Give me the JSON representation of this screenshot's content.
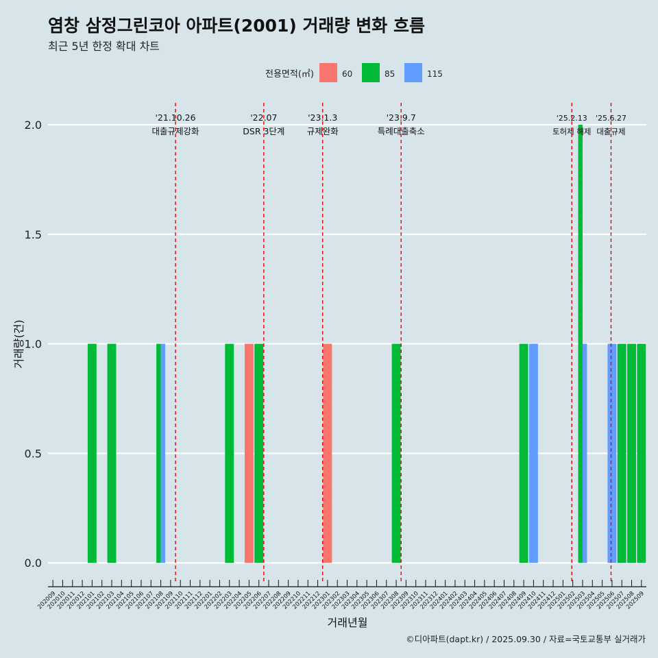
{
  "header": {
    "title": "염창 삼정그린코아 아파트(2001) 거래량 변화 흐름",
    "subtitle": "최근 5년 한정 확대 차트"
  },
  "caption": "©디아파트(dapt.kr) / 2025.09.30 / 자료=국토교통부 실거래가",
  "chart_data": {
    "type": "bar",
    "title": "염창 삼정그린코아 아파트(2001) 거래량 변화 흐름",
    "xlabel": "거래년월",
    "ylabel": "거래량(건)",
    "ylim": [
      -0.09,
      2.1
    ],
    "yticks": [
      0.0,
      0.5,
      1.0,
      1.5,
      2.0
    ],
    "ytick_labels": [
      "0.0",
      "0.5",
      "1.0",
      "1.5",
      "2.0"
    ],
    "legend": {
      "title": "전용면적(㎡)",
      "position": "top",
      "entries": [
        {
          "name": "60",
          "color": "#f8766d"
        },
        {
          "name": "85",
          "color": "#00ba38"
        },
        {
          "name": "115",
          "color": "#619cff"
        }
      ]
    },
    "categories": [
      "202009",
      "202010",
      "202011",
      "202012",
      "202101",
      "202102",
      "202103",
      "202104",
      "202105",
      "202106",
      "202107",
      "202108",
      "202109",
      "202110",
      "202111",
      "202112",
      "202201",
      "202202",
      "202203",
      "202204",
      "202205",
      "202206",
      "202207",
      "202208",
      "202209",
      "202210",
      "202211",
      "202212",
      "202301",
      "202302",
      "202303",
      "202304",
      "202305",
      "202306",
      "202307",
      "202308",
      "202309",
      "202310",
      "202311",
      "202312",
      "202401",
      "202402",
      "202403",
      "202404",
      "202405",
      "202406",
      "202407",
      "202408",
      "202409",
      "202410",
      "202411",
      "202412",
      "202501",
      "202502",
      "202503",
      "202504",
      "202505",
      "202506",
      "202507",
      "202508",
      "202509"
    ],
    "x_tick_labels": [
      "202009",
      "202010",
      "202011",
      "202012",
      "202101",
      "202102",
      "202103",
      "202104",
      "202105",
      "202106",
      "202107",
      "202108",
      "202109",
      "202110",
      "202111",
      "202112",
      "202201",
      "202202",
      "202203",
      "202204",
      "202205",
      "202206",
      "202207",
      "202208",
      "202209",
      "202210",
      "202211",
      "202212",
      "202301",
      "202302",
      "202303",
      "202304",
      "202305",
      "202306",
      "202307",
      "202308",
      "202309",
      "202310",
      "202311",
      "202312",
      "202401",
      "202402",
      "202403",
      "202404",
      "202405",
      "202406",
      "202407",
      "202408",
      "202409",
      "202410",
      "202411",
      "202412",
      "202501",
      "202502",
      "202503",
      "202504",
      "202505",
      "202506",
      "202507",
      "202508",
      "202509"
    ],
    "bars": [
      {
        "month": "202101",
        "area": "85",
        "value": 1
      },
      {
        "month": "202103",
        "area": "85",
        "value": 1
      },
      {
        "month": "202108",
        "area": "85",
        "value": 1
      },
      {
        "month": "202108",
        "area": "115",
        "value": 1
      },
      {
        "month": "202203",
        "area": "85",
        "value": 1
      },
      {
        "month": "202205",
        "area": "60",
        "value": 1
      },
      {
        "month": "202206",
        "area": "85",
        "value": 1
      },
      {
        "month": "202301",
        "area": "60",
        "value": 1
      },
      {
        "month": "202308",
        "area": "85",
        "value": 1
      },
      {
        "month": "202409",
        "area": "85",
        "value": 1
      },
      {
        "month": "202410",
        "area": "115",
        "value": 1
      },
      {
        "month": "202503",
        "area": "85",
        "value": 2
      },
      {
        "month": "202503",
        "area": "115",
        "value": 1
      },
      {
        "month": "202506",
        "area": "115",
        "value": 1
      },
      {
        "month": "202507",
        "area": "85",
        "value": 1
      },
      {
        "month": "202508",
        "area": "85",
        "value": 1
      },
      {
        "month": "202509",
        "area": "85",
        "value": 1
      }
    ],
    "events": [
      {
        "x": 13.0,
        "date": "'21.10.26",
        "label": "대출규제강화"
      },
      {
        "x": 22.0,
        "date": "'22.07",
        "label": "DSR 3단계"
      },
      {
        "x": 28.0,
        "date": "'23.1.3",
        "label": "규제완화"
      },
      {
        "x": 36.0,
        "date": "'23.9.7",
        "label": "특례대출축소"
      },
      {
        "x": 53.4,
        "date": "'25.2.13",
        "label": "토허제 해제"
      },
      {
        "x": 57.4,
        "date": "'25.6.27",
        "label": "대출규제"
      }
    ]
  }
}
